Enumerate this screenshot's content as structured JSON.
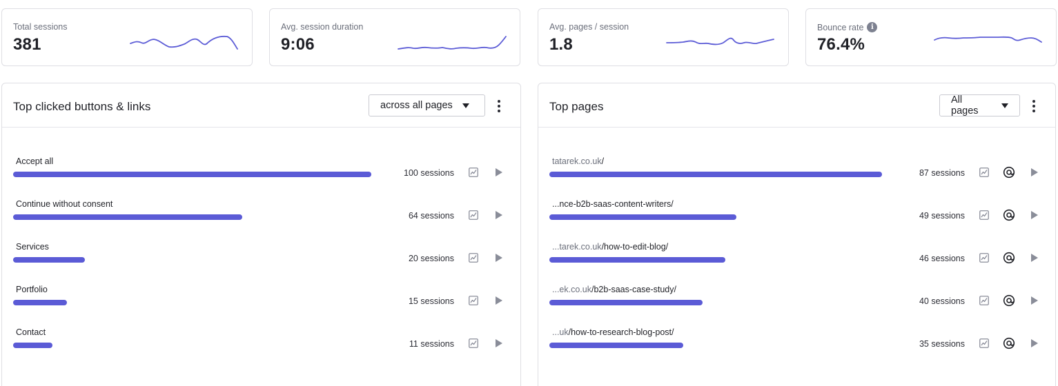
{
  "stats": [
    {
      "label": "Total sessions",
      "value": "381",
      "has_info": false
    },
    {
      "label": "Avg. session duration",
      "value": "9:06",
      "has_info": false
    },
    {
      "label": "Avg. pages / session",
      "value": "1.8",
      "has_info": false
    },
    {
      "label": "Bounce rate",
      "value": "76.4%",
      "has_info": true
    }
  ],
  "buttons_panel": {
    "title": "Top clicked buttons & links",
    "filter": "across all pages",
    "rows": [
      {
        "label": "Accept all",
        "sessions": "100 sessions",
        "value": 100
      },
      {
        "label": "Continue without consent",
        "sessions": "64 sessions",
        "value": 64
      },
      {
        "label": "Services",
        "sessions": "20 sessions",
        "value": 20
      },
      {
        "label": "Portfolio",
        "sessions": "15 sessions",
        "value": 15
      },
      {
        "label": "Contact",
        "sessions": "11 sessions",
        "value": 11
      }
    ]
  },
  "pages_panel": {
    "title": "Top pages",
    "filter": "All pages",
    "rows": [
      {
        "domain": "tatarek.co.uk",
        "path": "/",
        "sessions": "87 sessions",
        "value": 87
      },
      {
        "domain": "",
        "path": "...nce-b2b-saas-content-writers/",
        "sessions": "49 sessions",
        "value": 49
      },
      {
        "domain": "...tarek.co.uk",
        "path": "/how-to-edit-blog/",
        "sessions": "46 sessions",
        "value": 46
      },
      {
        "domain": "...ek.co.uk",
        "path": "/b2b-saas-case-study/",
        "sessions": "40 sessions",
        "value": 40
      },
      {
        "domain": "...uk",
        "path": "/how-to-research-blog-post/",
        "sessions": "35 sessions",
        "value": 35
      }
    ]
  },
  "icons": {
    "trend": "trend-chart-icon",
    "play": "play-icon",
    "at": "at-sign-icon",
    "info": "info-icon",
    "menu": "kebab-menu-icon"
  },
  "colors": {
    "accent": "#5b5bd6",
    "border": "#dedee3",
    "muted_text": "#6b6f7b"
  }
}
